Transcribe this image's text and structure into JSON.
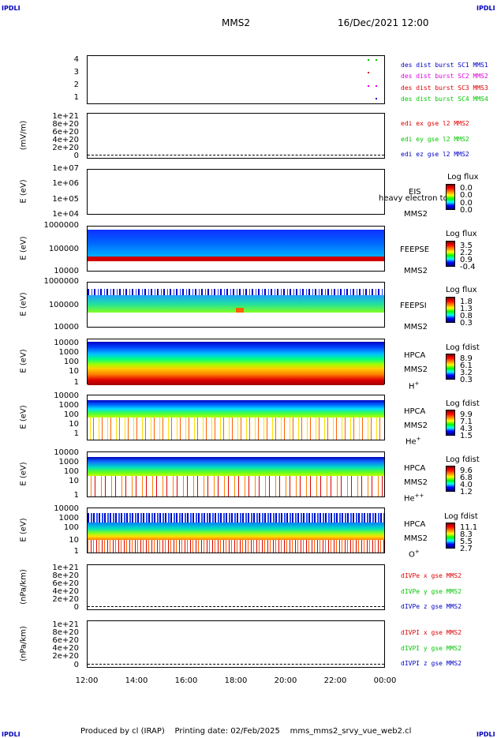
{
  "corners": {
    "tl": "IPDLI",
    "tr": "IPDLI",
    "bl": "IPDLI",
    "br": "IPDLI"
  },
  "header": {
    "spacecraft": "MMS2",
    "date": "16/Dec/2021 12:00"
  },
  "footer": {
    "produced": "Produced by cl (IRAP)",
    "printing": "Printing date: 02/Feb/2025",
    "file": "mms_mms2_srvy_vue_web2.cl"
  },
  "colors": {
    "blue": "#0000c8",
    "magenta": "#e000e0",
    "red": "#e00000",
    "green": "#00c800"
  },
  "chart_data": [
    {
      "type": "scatter",
      "title": "",
      "ylabel": "",
      "yticks": [
        "4",
        "3",
        "2",
        "1"
      ],
      "series": [
        {
          "name": "des dist burst SC1 MMS1",
          "x": [
            "23:30",
            "23:50"
          ],
          "y": [
            4,
            4
          ]
        },
        {
          "name": "des dist burst SC2 MMS2",
          "x": [
            "23:30",
            "23:50"
          ],
          "y": [
            3,
            3
          ]
        },
        {
          "name": "des dist burst SC3 MMS3",
          "x": [
            "23:30",
            "23:50"
          ],
          "y": [
            2,
            2
          ]
        },
        {
          "name": "des dist burst SC4 MMS4",
          "x": [
            "23:30",
            "23:50"
          ],
          "y": [
            1,
            1
          ]
        }
      ]
    },
    {
      "type": "line",
      "ylabel": "(mV/m)",
      "yticks": [
        "1e+21",
        "8e+20",
        "6e+20",
        "4e+20",
        "2e+20",
        "0"
      ],
      "series": [
        {
          "name": "edi ex gse l2 MMS2"
        },
        {
          "name": "edi ey gse l2 MMS2"
        },
        {
          "name": "edi ez gse l2 MMS2"
        }
      ]
    },
    {
      "type": "heatmap",
      "ylabel": "E (eV)",
      "yticks": [
        "1e+07",
        "1e+06",
        "1e+05",
        "1e+04"
      ],
      "labels": [
        "EIS",
        "heavy electron to",
        "MMS2"
      ],
      "cbar_title": "Log flux",
      "cbar": [
        "0.0",
        "0.0",
        "0.0",
        "0.0"
      ]
    },
    {
      "type": "heatmap",
      "ylabel": "E (eV)",
      "yticks": [
        "1000000",
        "100000",
        "10000"
      ],
      "labels": [
        "FEEPSE",
        "MMS2"
      ],
      "cbar_title": "Log flux",
      "cbar": [
        "3.5",
        "2.2",
        "0.9",
        "-0.4"
      ]
    },
    {
      "type": "heatmap",
      "ylabel": "E (eV)",
      "yticks": [
        "1000000",
        "100000",
        "10000"
      ],
      "labels": [
        "FEEPSI",
        "MMS2"
      ],
      "cbar_title": "Log flux",
      "cbar": [
        "1.8",
        "1.3",
        "0.8",
        "0.3"
      ]
    },
    {
      "type": "heatmap",
      "ylabel": "E (eV)",
      "yticks": [
        "10000",
        "1000",
        "100",
        "10",
        "1"
      ],
      "labels": [
        "HPCA",
        "MMS2",
        "H",
        "+"
      ],
      "cbar_title": "Log fdist",
      "cbar": [
        "8.9",
        "6.1",
        "3.2",
        "0.3"
      ]
    },
    {
      "type": "heatmap",
      "ylabel": "E (eV)",
      "yticks": [
        "10000",
        "1000",
        "100",
        "10",
        "1"
      ],
      "labels": [
        "HPCA",
        "MMS2",
        "He",
        "+"
      ],
      "cbar_title": "Log fdist",
      "cbar": [
        "9.9",
        "7.1",
        "4.3",
        "1.5"
      ]
    },
    {
      "type": "heatmap",
      "ylabel": "E (eV)",
      "yticks": [
        "10000",
        "1000",
        "100",
        "10",
        "1"
      ],
      "labels": [
        "HPCA",
        "MMS2",
        "He",
        "++"
      ],
      "cbar_title": "Log fdist",
      "cbar": [
        "9.6",
        "6.8",
        "4.0",
        "1.2"
      ]
    },
    {
      "type": "heatmap",
      "ylabel": "E (eV)",
      "yticks": [
        "10000",
        "1000",
        "100",
        "10",
        "1"
      ],
      "labels": [
        "HPCA",
        "MMS2",
        "O",
        "+"
      ],
      "cbar_title": "Log fdist",
      "cbar": [
        "11.1",
        "8.3",
        "5.5",
        "2.7"
      ]
    },
    {
      "type": "line",
      "ylabel": "(nPa/km)",
      "yticks": [
        "1e+21",
        "8e+20",
        "6e+20",
        "4e+20",
        "2e+20",
        "0"
      ],
      "series": [
        {
          "name": "dIVPe x gse MMS2"
        },
        {
          "name": "dIVPe y gse MMS2"
        },
        {
          "name": "dIVPe z gse MMS2"
        }
      ]
    },
    {
      "type": "line",
      "ylabel": "(nPa/km)",
      "yticks": [
        "1e+21",
        "8e+20",
        "6e+20",
        "4e+20",
        "2e+20",
        "0"
      ],
      "series": [
        {
          "name": "dIVPI x gse MMS2"
        },
        {
          "name": "dIVPI y gse MMS2"
        },
        {
          "name": "dIVPI z gse MMS2"
        }
      ]
    }
  ],
  "xaxis": {
    "ticks": [
      "12:00",
      "14:00",
      "16:00",
      "18:00",
      "20:00",
      "22:00",
      "00:00"
    ]
  }
}
